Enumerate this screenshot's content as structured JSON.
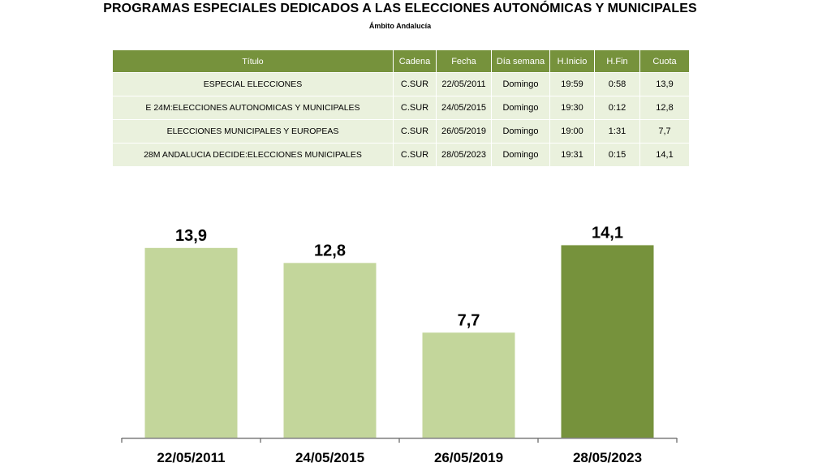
{
  "title": "PROGRAMAS ESPECIALES DEDICADOS A LAS ELECCIONES AUTONÓMICAS Y MUNICIPALES",
  "subtitle": "Ámbito Andalucía",
  "table": {
    "headers": [
      "Título",
      "Cadena",
      "Fecha",
      "Día semana",
      "H.Inicio",
      "H.Fin",
      "Cuota"
    ],
    "rows": [
      [
        "ESPECIAL ELECCIONES",
        "C.SUR",
        "22/05/2011",
        "Domingo",
        "19:59",
        "0:58",
        "13,9"
      ],
      [
        "E 24M:ELECCIONES AUTONOMICAS Y MUNICIPALES",
        "C.SUR",
        "24/05/2015",
        "Domingo",
        "19:30",
        "0:12",
        "12,8"
      ],
      [
        "ELECCIONES MUNICIPALES Y EUROPEAS",
        "C.SUR",
        "26/05/2019",
        "Domingo",
        "19:00",
        "1:31",
        "7,7"
      ],
      [
        "28M ANDALUCIA DECIDE:ELECCIONES MUNICIPALES",
        "C.SUR",
        "28/05/2023",
        "Domingo",
        "19:31",
        "0:15",
        "14,1"
      ]
    ]
  },
  "chart_data": {
    "type": "bar",
    "categories": [
      "22/05/2011",
      "24/05/2015",
      "26/05/2019",
      "28/05/2023"
    ],
    "values": [
      13.9,
      12.8,
      7.7,
      14.1
    ],
    "data_labels": [
      "13,9",
      "12,8",
      "7,7",
      "14,1"
    ],
    "title": "",
    "xlabel": "",
    "ylabel": "",
    "ylim": [
      0,
      16.5
    ],
    "grid": false,
    "colors": [
      "#c3d69b",
      "#c3d69b",
      "#c3d69b",
      "#76923c"
    ],
    "axis_color": "#7f7f7f"
  }
}
